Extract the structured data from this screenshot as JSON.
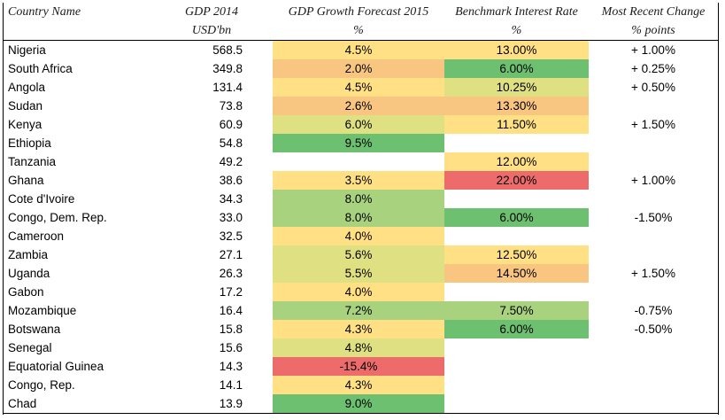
{
  "header": {
    "country": "Country Name",
    "gdp": "GDP 2014",
    "gdp_unit": "USD'bn",
    "growth": "GDP Growth Forecast 2015",
    "growth_unit": "%",
    "rate": "Benchmark Interest Rate",
    "rate_unit": "%",
    "change": "Most Recent Change",
    "change_unit": "% points"
  },
  "colors": {
    "red": "#ee6b6b",
    "orange": "#f9c681",
    "yellow": "#ffe085",
    "yellowgreen": "#dfe082",
    "lightgreen": "#a8d27e",
    "green": "#6cc070"
  },
  "rows": [
    {
      "country": "Nigeria",
      "gdp": "568.5",
      "growth": "4.5%",
      "growth_color": "yellow",
      "rate": "13.00%",
      "rate_color": "yellow",
      "change": "+ 1.00%"
    },
    {
      "country": "South Africa",
      "gdp": "349.8",
      "growth": "2.0%",
      "growth_color": "orange",
      "rate": "6.00%",
      "rate_color": "green",
      "change": "+ 0.25%"
    },
    {
      "country": "Angola",
      "gdp": "131.4",
      "growth": "4.5%",
      "growth_color": "yellow",
      "rate": "10.25%",
      "rate_color": "yellowgreen",
      "change": "+ 0.50%"
    },
    {
      "country": "Sudan",
      "gdp": "73.8",
      "growth": "2.6%",
      "growth_color": "orange",
      "rate": "13.30%",
      "rate_color": "orange",
      "change": ""
    },
    {
      "country": "Kenya",
      "gdp": "60.9",
      "growth": "6.0%",
      "growth_color": "yellowgreen",
      "rate": "11.50%",
      "rate_color": "yellow",
      "change": "+ 1.50%"
    },
    {
      "country": "Ethiopia",
      "gdp": "54.8",
      "growth": "9.5%",
      "growth_color": "green",
      "rate": "",
      "rate_color": "",
      "change": ""
    },
    {
      "country": "Tanzania",
      "gdp": "49.2",
      "growth": "",
      "growth_color": "",
      "rate": "12.00%",
      "rate_color": "yellow",
      "change": ""
    },
    {
      "country": "Ghana",
      "gdp": "38.6",
      "growth": "3.5%",
      "growth_color": "yellow",
      "rate": "22.00%",
      "rate_color": "red",
      "change": "+ 1.00%"
    },
    {
      "country": "Cote d'Ivoire",
      "gdp": "34.3",
      "growth": "8.0%",
      "growth_color": "lightgreen",
      "rate": "",
      "rate_color": "",
      "change": ""
    },
    {
      "country": "Congo, Dem. Rep.",
      "gdp": "33.0",
      "growth": "8.0%",
      "growth_color": "lightgreen",
      "rate": "6.00%",
      "rate_color": "green",
      "change": "-1.50%"
    },
    {
      "country": "Cameroon",
      "gdp": "32.5",
      "growth": "4.0%",
      "growth_color": "yellow",
      "rate": "",
      "rate_color": "",
      "change": ""
    },
    {
      "country": "Zambia",
      "gdp": "27.1",
      "growth": "5.6%",
      "growth_color": "yellowgreen",
      "rate": "12.50%",
      "rate_color": "yellow",
      "change": ""
    },
    {
      "country": "Uganda",
      "gdp": "26.3",
      "growth": "5.5%",
      "growth_color": "yellowgreen",
      "rate": "14.50%",
      "rate_color": "orange",
      "change": "+ 1.50%"
    },
    {
      "country": "Gabon",
      "gdp": "17.2",
      "growth": "4.0%",
      "growth_color": "yellow",
      "rate": "",
      "rate_color": "",
      "change": ""
    },
    {
      "country": "Mozambique",
      "gdp": "16.4",
      "growth": "7.2%",
      "growth_color": "lightgreen",
      "rate": "7.50%",
      "rate_color": "lightgreen",
      "change": "-0.75%"
    },
    {
      "country": "Botswana",
      "gdp": "15.8",
      "growth": "4.3%",
      "growth_color": "yellow",
      "rate": "6.00%",
      "rate_color": "green",
      "change": "-0.50%"
    },
    {
      "country": "Senegal",
      "gdp": "15.6",
      "growth": "4.8%",
      "growth_color": "yellowgreen",
      "rate": "",
      "rate_color": "",
      "change": ""
    },
    {
      "country": "Equatorial Guinea",
      "gdp": "14.3",
      "growth": "-15.4%",
      "growth_color": "red",
      "rate": "",
      "rate_color": "",
      "change": ""
    },
    {
      "country": "Congo, Rep.",
      "gdp": "14.1",
      "growth": "4.3%",
      "growth_color": "yellow",
      "rate": "",
      "rate_color": "",
      "change": ""
    },
    {
      "country": "Chad",
      "gdp": "13.9",
      "growth": "9.0%",
      "growth_color": "green",
      "rate": "",
      "rate_color": "",
      "change": ""
    }
  ]
}
